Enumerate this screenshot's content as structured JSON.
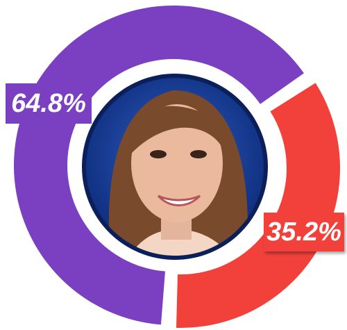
{
  "chart_data": {
    "type": "pie",
    "values": [
      64.8,
      35.2
    ],
    "value_labels": [
      "64.8%",
      "35.2%"
    ],
    "colors": [
      "#7b3fc1",
      "#f2413b"
    ],
    "donut": true
  }
}
